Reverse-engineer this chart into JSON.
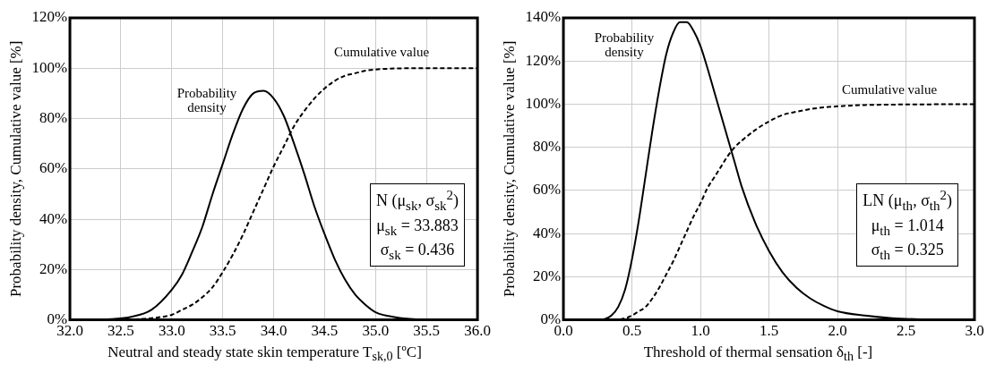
{
  "chart_data": [
    {
      "type": "line",
      "xlabel": "Neutral and steady state skin temperature T$_{sk,0}$ [ºC]",
      "ylabel": "Probability density, Cumulative value [%]",
      "x": [
        32.0,
        32.2,
        32.4,
        32.6,
        32.8,
        33.0,
        33.1,
        33.2,
        33.3,
        33.4,
        33.5,
        33.6,
        33.7,
        33.8,
        33.9,
        34.0,
        34.1,
        34.2,
        34.3,
        34.4,
        34.5,
        34.6,
        34.7,
        34.8,
        34.9,
        35.0,
        35.2,
        35.4,
        35.6,
        36.0
      ],
      "series": [
        {
          "color": "#000000",
          "line_style": "solid",
          "values": [
            0,
            0,
            0.3,
            1.2,
            4,
            12,
            18,
            27,
            37,
            50,
            62,
            74,
            84,
            90,
            91,
            88,
            81,
            70,
            58,
            45,
            34,
            24,
            16,
            10,
            6,
            3,
            1,
            0.2,
            0,
            0
          ]
        },
        {
          "color": "#000000",
          "line_style": "dashed",
          "values": [
            0,
            0,
            0,
            0.2,
            0.7,
            2,
            4,
            6,
            9,
            13,
            19,
            26,
            34,
            43,
            52,
            61,
            69,
            77,
            83,
            88,
            92,
            95,
            97,
            98,
            99,
            99.5,
            99.9,
            100,
            100,
            100
          ]
        }
      ],
      "xlim": [
        32,
        36
      ],
      "xticks": [
        {
          "value": 32,
          "label": "32.0"
        },
        {
          "value": 32.5,
          "label": "32.5"
        },
        {
          "value": 33,
          "label": "33.0"
        },
        {
          "value": 33.5,
          "label": "33.5"
        },
        {
          "value": 34,
          "label": "34.0"
        },
        {
          "value": 34.5,
          "label": "34.5"
        },
        {
          "value": 35,
          "label": "35.0"
        },
        {
          "value": 35.5,
          "label": "35.5"
        },
        {
          "value": 36,
          "label": "36.0"
        }
      ],
      "ylim": [
        0,
        120
      ],
      "yticks": [
        {
          "value": 0,
          "label": "0%"
        },
        {
          "value": 20,
          "label": "20%"
        },
        {
          "value": 40,
          "label": "40%"
        },
        {
          "value": 60,
          "label": "60%"
        },
        {
          "value": 80,
          "label": "80%"
        },
        {
          "value": 100,
          "label": "100%"
        },
        {
          "value": 120,
          "label": "120%"
        }
      ],
      "grid": true,
      "legend": false,
      "marker": "none",
      "annotations": [
        "Probability density",
        "Cumulative value",
        "N (μ$_{sk}$, σ$_{sk}$$^{2}$)",
        "μ$_{sk}$ = 33.883",
        "σ$_{sk}$ =   0.436"
      ]
    },
    {
      "type": "line",
      "xlabel": "Threshold of thermal sensation δ$_{th}$ [-]",
      "ylabel": "Probability density, Cumulative value [%]",
      "x": [
        0.1,
        0.2,
        0.3,
        0.35,
        0.4,
        0.45,
        0.5,
        0.55,
        0.6,
        0.65,
        0.7,
        0.75,
        0.8,
        0.85,
        0.9,
        0.95,
        1.0,
        1.05,
        1.1,
        1.15,
        1.2,
        1.25,
        1.3,
        1.4,
        1.5,
        1.6,
        1.7,
        1.8,
        1.9,
        2.0,
        2.2,
        2.4,
        2.6,
        3.0
      ],
      "series": [
        {
          "color": "#000000",
          "line_style": "solid",
          "values": [
            0,
            0,
            0.4,
            2,
            6,
            14,
            28,
            46,
            67,
            88,
            107,
            123,
            133,
            138,
            138,
            134,
            127,
            117,
            106,
            95,
            84,
            73,
            62,
            45,
            32,
            22,
            15,
            10,
            6.5,
            4,
            2,
            0.8,
            0.3,
            0
          ]
        },
        {
          "color": "#000000",
          "line_style": "dashed",
          "values": [
            0,
            0,
            0,
            0,
            0.2,
            0.7,
            2,
            4,
            6,
            10,
            15,
            21,
            27,
            34,
            41,
            48,
            54,
            61,
            66,
            71,
            76,
            80,
            83,
            88,
            92,
            95,
            96.5,
            97.7,
            98.5,
            99,
            99.6,
            99.8,
            99.9,
            100
          ]
        }
      ],
      "xlim": [
        0,
        3
      ],
      "xticks": [
        {
          "value": 0,
          "label": "0.0"
        },
        {
          "value": 0.5,
          "label": "0.5"
        },
        {
          "value": 1,
          "label": "1.0"
        },
        {
          "value": 1.5,
          "label": "1.5"
        },
        {
          "value": 2,
          "label": "2.0"
        },
        {
          "value": 2.5,
          "label": "2.5"
        },
        {
          "value": 3,
          "label": "3.0"
        }
      ],
      "ylim": [
        0,
        140
      ],
      "yticks": [
        {
          "value": 0,
          "label": "0%"
        },
        {
          "value": 20,
          "label": "20%"
        },
        {
          "value": 40,
          "label": "40%"
        },
        {
          "value": 60,
          "label": "60%"
        },
        {
          "value": 80,
          "label": "80%"
        },
        {
          "value": 100,
          "label": "100%"
        },
        {
          "value": 120,
          "label": "120%"
        },
        {
          "value": 140,
          "label": "140%"
        }
      ],
      "grid": true,
      "legend": false,
      "marker": "none",
      "annotations": [
        "Probability density",
        "Cumulative value",
        "LN (μ$_{th}$, σ$_{th}$$^{2}$)",
        "μ$_{th}$ = 1.014",
        "σ$_{th}$ =  0.325"
      ]
    }
  ]
}
